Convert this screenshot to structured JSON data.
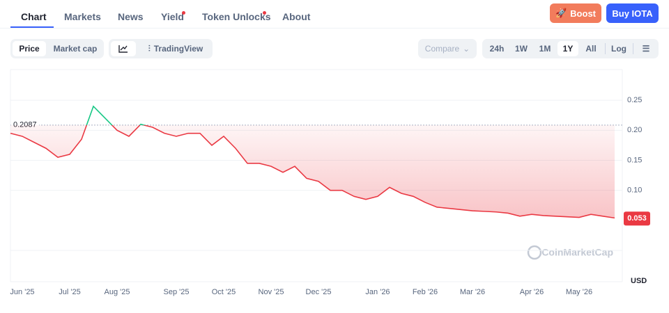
{
  "nav": {
    "tabs": [
      "Chart",
      "Markets",
      "News",
      "Yield",
      "Token Unlocks",
      "About"
    ]
  },
  "actions": {
    "boost": "Boost",
    "buy": "Buy IOTA"
  },
  "toolbar": {
    "toggle": [
      "Price",
      "Market cap"
    ],
    "tradingview": "TradingView",
    "compare": "Compare",
    "ranges": [
      "24h",
      "1W",
      "1M",
      "1Y",
      "All"
    ],
    "log": "Log"
  },
  "chart_data": {
    "type": "line",
    "categories": [
      null,
      "Jun '25",
      null,
      null,
      null,
      "Jul '25",
      null,
      null,
      null,
      "Aug '25",
      null,
      null,
      null,
      null,
      "Sep '25",
      null,
      null,
      null,
      "Oct '25",
      null,
      null,
      null,
      "Nov '25",
      null,
      null,
      null,
      "Dec '25",
      null,
      null,
      null,
      null,
      "Jan '26",
      null,
      null,
      null,
      "Feb '26",
      null,
      null,
      null,
      "Mar '26",
      null,
      null,
      null,
      null,
      "Apr '26",
      null,
      null,
      null,
      "May '26",
      null,
      null,
      null
    ],
    "series": [
      {
        "name": "Price",
        "color": "#ea3943",
        "up_color": "#16c784",
        "values": [
          0.195,
          0.19,
          0.18,
          0.17,
          0.155,
          0.16,
          0.185,
          0.24,
          0.22,
          0.2,
          0.19,
          0.21,
          0.205,
          0.195,
          0.19,
          0.195,
          0.195,
          0.175,
          0.19,
          0.17,
          0.145,
          0.145,
          0.14,
          0.13,
          0.14,
          0.12,
          0.115,
          0.1,
          0.1,
          0.09,
          0.085,
          0.09,
          0.105,
          0.095,
          0.09,
          0.08,
          0.072,
          0.07,
          0.068,
          0.066,
          0.065,
          0.064,
          0.062,
          0.057,
          0.06,
          0.058,
          0.057,
          0.056,
          0.055,
          0.06,
          0.057,
          0.054
        ]
      }
    ],
    "ylim": [
      0,
      0.3
    ],
    "yticks": [
      {
        "value": 0.1,
        "label": "0.10"
      },
      {
        "value": 0.15,
        "label": "0.15"
      },
      {
        "value": 0.2,
        "label": "0.20"
      },
      {
        "value": 0.25,
        "label": "0.25"
      }
    ],
    "reference": 0.2087,
    "current_price": 0.053,
    "currency": "USD",
    "watermark": "CoinMarketCap",
    "grid": true
  }
}
